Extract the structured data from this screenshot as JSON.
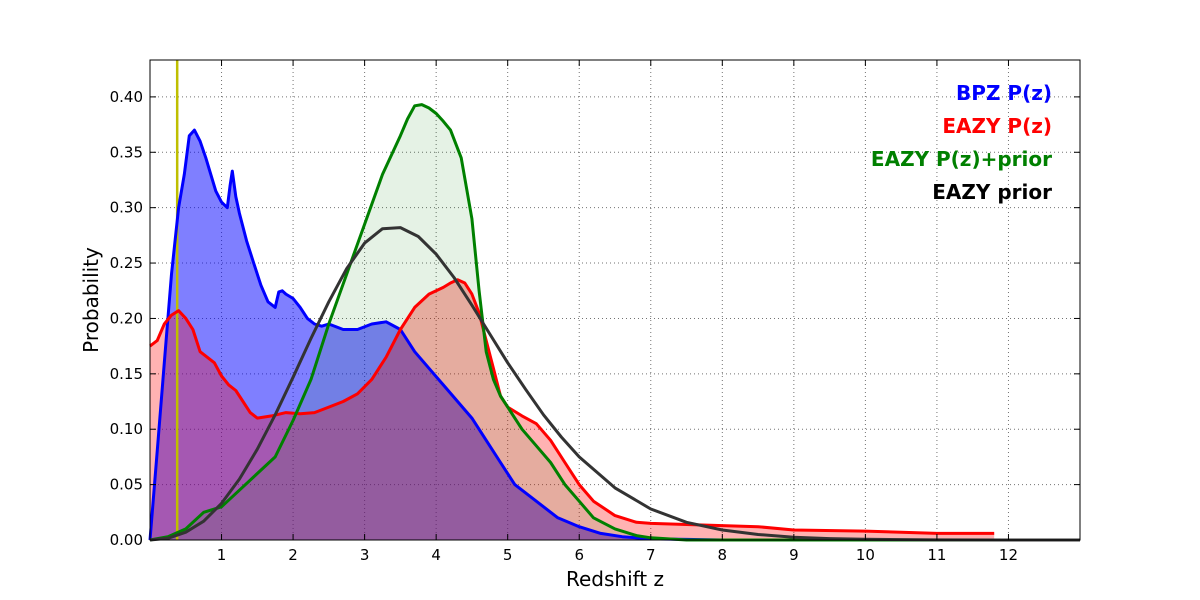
{
  "chart_data": {
    "type": "line",
    "xlabel": "Redshift z",
    "ylabel": "Probability",
    "xlim": [
      0,
      13
    ],
    "ylim": [
      0,
      0.4333
    ],
    "x_ticks": [
      1,
      2,
      3,
      4,
      5,
      6,
      7,
      8,
      9,
      10,
      11,
      12
    ],
    "y_ticks": [
      0.0,
      0.05,
      0.1,
      0.15,
      0.2,
      0.25,
      0.3,
      0.35,
      0.4
    ],
    "x_tick_labels": [
      "1",
      "2",
      "3",
      "4",
      "5",
      "6",
      "7",
      "8",
      "9",
      "10",
      "11",
      "12"
    ],
    "y_tick_labels": [
      "0.00",
      "0.05",
      "0.10",
      "0.15",
      "0.20",
      "0.25",
      "0.30",
      "0.35",
      "0.40"
    ],
    "grid": true,
    "legend_position": "top-right",
    "vertical_line": {
      "x": 0.38,
      "color": "#bfbf00"
    },
    "series": [
      {
        "name": "BPZ P(z)",
        "color": "#0000ff",
        "fill_color": "#0000ff",
        "fill_opacity": 0.5,
        "x": [
          0,
          0.1,
          0.2,
          0.3,
          0.4,
          0.48,
          0.55,
          0.62,
          0.7,
          0.78,
          0.85,
          0.92,
          1.0,
          1.08,
          1.12,
          1.15,
          1.2,
          1.25,
          1.35,
          1.45,
          1.55,
          1.65,
          1.75,
          1.8,
          1.85,
          1.9,
          2.0,
          2.1,
          2.2,
          2.3,
          2.4,
          2.5,
          2.7,
          2.9,
          3.1,
          3.3,
          3.5,
          3.7,
          3.9,
          4.1,
          4.3,
          4.5,
          4.7,
          4.9,
          5.1,
          5.4,
          5.7,
          6.0,
          6.3,
          6.6,
          7.0,
          7.5,
          8,
          9,
          10,
          11,
          12,
          13
        ],
        "y": [
          0.0,
          0.08,
          0.16,
          0.24,
          0.3,
          0.33,
          0.365,
          0.37,
          0.36,
          0.345,
          0.33,
          0.315,
          0.305,
          0.3,
          0.32,
          0.333,
          0.31,
          0.295,
          0.27,
          0.25,
          0.23,
          0.215,
          0.21,
          0.224,
          0.225,
          0.222,
          0.218,
          0.21,
          0.2,
          0.195,
          0.193,
          0.195,
          0.19,
          0.19,
          0.195,
          0.197,
          0.19,
          0.17,
          0.155,
          0.14,
          0.125,
          0.11,
          0.09,
          0.07,
          0.05,
          0.035,
          0.02,
          0.012,
          0.006,
          0.003,
          0.001,
          0.0005,
          0.0,
          0.0,
          0.0,
          0.0,
          0.0,
          0.0
        ]
      },
      {
        "name": "EAZY P(z)",
        "color": "#ff0000",
        "fill_color": "#ff0000",
        "fill_opacity": 0.3,
        "x": [
          0,
          0.1,
          0.2,
          0.3,
          0.4,
          0.5,
          0.6,
          0.7,
          0.8,
          0.9,
          1.0,
          1.1,
          1.2,
          1.3,
          1.4,
          1.5,
          1.7,
          1.9,
          2.1,
          2.3,
          2.5,
          2.7,
          2.9,
          3.1,
          3.3,
          3.5,
          3.7,
          3.9,
          4.1,
          4.2,
          4.3,
          4.4,
          4.5,
          4.6,
          4.7,
          4.8,
          4.9,
          5.0,
          5.2,
          5.4,
          5.6,
          5.8,
          6.0,
          6.2,
          6.5,
          6.8,
          7.0,
          7.5,
          8.0,
          8.5,
          9.0,
          10.0,
          10.5,
          11.0,
          11.8
        ],
        "y": [
          0.175,
          0.18,
          0.195,
          0.203,
          0.207,
          0.2,
          0.19,
          0.17,
          0.165,
          0.16,
          0.148,
          0.14,
          0.135,
          0.125,
          0.115,
          0.11,
          0.112,
          0.115,
          0.114,
          0.115,
          0.12,
          0.125,
          0.132,
          0.145,
          0.165,
          0.19,
          0.21,
          0.222,
          0.228,
          0.232,
          0.235,
          0.232,
          0.222,
          0.205,
          0.18,
          0.155,
          0.13,
          0.12,
          0.112,
          0.105,
          0.09,
          0.07,
          0.05,
          0.035,
          0.022,
          0.016,
          0.015,
          0.014,
          0.013,
          0.012,
          0.009,
          0.008,
          0.007,
          0.006,
          0.006
        ]
      },
      {
        "name": "EAZY P(z)+prior",
        "color": "#008000",
        "fill_color": "#008000",
        "fill_opacity": 0.1,
        "x": [
          0,
          0.25,
          0.5,
          0.75,
          1.0,
          1.25,
          1.5,
          1.75,
          2.0,
          2.25,
          2.5,
          2.75,
          3.0,
          3.25,
          3.5,
          3.6,
          3.7,
          3.8,
          3.9,
          4.0,
          4.1,
          4.2,
          4.35,
          4.5,
          4.6,
          4.7,
          4.8,
          4.9,
          5.0,
          5.2,
          5.4,
          5.6,
          5.8,
          6.0,
          6.2,
          6.5,
          6.8,
          7.0,
          7.5,
          8.0,
          9.0,
          10,
          11,
          12,
          13
        ],
        "y": [
          0.0,
          0.003,
          0.01,
          0.025,
          0.03,
          0.045,
          0.06,
          0.075,
          0.108,
          0.145,
          0.195,
          0.24,
          0.285,
          0.33,
          0.365,
          0.38,
          0.392,
          0.393,
          0.39,
          0.385,
          0.378,
          0.37,
          0.345,
          0.29,
          0.225,
          0.17,
          0.145,
          0.13,
          0.12,
          0.1,
          0.085,
          0.07,
          0.05,
          0.035,
          0.02,
          0.01,
          0.004,
          0.002,
          0.0,
          0.0,
          0.0,
          0.0,
          0.0,
          0.0,
          0.0
        ]
      },
      {
        "name": "EAZY prior",
        "color": "#333333",
        "fill_color": "",
        "fill_opacity": 0,
        "x": [
          0,
          0.25,
          0.5,
          0.75,
          1.0,
          1.25,
          1.5,
          1.75,
          2.0,
          2.25,
          2.5,
          2.75,
          3.0,
          3.25,
          3.5,
          3.75,
          4.0,
          4.25,
          4.5,
          4.75,
          5.0,
          5.25,
          5.5,
          5.75,
          6.0,
          6.5,
          7.0,
          7.5,
          8.0,
          8.5,
          9.0,
          9.5,
          10.0,
          11,
          12,
          13
        ],
        "y": [
          0.0,
          0.0015,
          0.007,
          0.017,
          0.033,
          0.055,
          0.082,
          0.113,
          0.147,
          0.182,
          0.215,
          0.245,
          0.268,
          0.281,
          0.282,
          0.274,
          0.258,
          0.237,
          0.212,
          0.186,
          0.16,
          0.136,
          0.113,
          0.093,
          0.075,
          0.047,
          0.028,
          0.016,
          0.009,
          0.005,
          0.0025,
          0.0013,
          0.0006,
          0.0001,
          0.0,
          0.0
        ]
      }
    ]
  }
}
